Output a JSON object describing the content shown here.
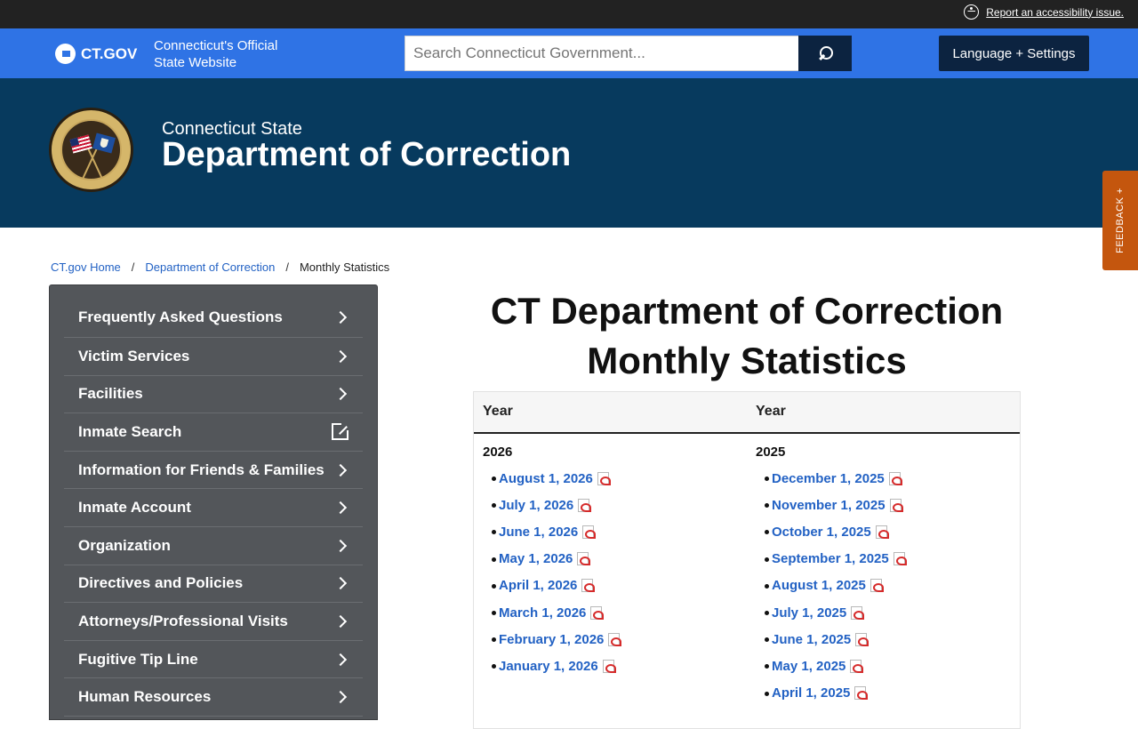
{
  "utility": {
    "accessibility_link": "Report an accessibility issue."
  },
  "header": {
    "logo_text": "CT.GOV",
    "tagline": "Connecticut's Official State Website",
    "search_placeholder": "Search Connecticut Government...",
    "language_button": "Language + Settings"
  },
  "agency": {
    "subtitle": "Connecticut State",
    "title": "Department of Correction"
  },
  "feedback": {
    "label": "FEEDBACK +"
  },
  "breadcrumb": {
    "home": "CT.gov Home",
    "separator": "/",
    "agency": "Department of Correction",
    "current": "Monthly Statistics"
  },
  "sidebar": {
    "items": [
      {
        "label": "Frequently Asked Questions",
        "icon": "chevron-right-icon"
      },
      {
        "label": "Victim Services",
        "icon": "chevron-right-icon"
      },
      {
        "label": "Facilities",
        "icon": "chevron-right-icon"
      },
      {
        "label": "Inmate Search",
        "icon": "external-link-icon"
      },
      {
        "label": "Information for Friends & Families",
        "icon": "chevron-right-icon"
      },
      {
        "label": "Inmate Account",
        "icon": "chevron-right-icon"
      },
      {
        "label": "Organization",
        "icon": "chevron-right-icon"
      },
      {
        "label": "Directives and Policies",
        "icon": "chevron-right-icon"
      },
      {
        "label": "Attorneys/Professional Visits",
        "icon": "chevron-right-icon"
      },
      {
        "label": "Fugitive Tip Line",
        "icon": "chevron-right-icon"
      },
      {
        "label": "Human Resources",
        "icon": "chevron-right-icon"
      }
    ]
  },
  "main": {
    "title": "CT Department of Correction Monthly Statistics",
    "table": {
      "headers": [
        "Year",
        "Year"
      ],
      "columns": [
        {
          "year": "2026",
          "links": [
            "August 1, 2026",
            "July 1, 2026",
            "June 1, 2026",
            "May 1, 2026",
            "April 1, 2026",
            "March 1, 2026",
            "February 1, 2026",
            "January 1, 2026"
          ]
        },
        {
          "year": "2025",
          "links": [
            "December 1, 2025",
            "November 1, 2025",
            "October 1, 2025",
            "September 1, 2025",
            "August 1, 2025",
            "July 1, 2025",
            "June 1, 2025",
            "May 1, 2025",
            "April 1, 2025"
          ]
        }
      ]
    }
  },
  "colors": {
    "utility_bar": "#222222",
    "header_blue": "#2f73e5",
    "navy": "#0c2340",
    "banner": "#073a5e",
    "sidebar": "#53565a",
    "feedback": "#c4560e",
    "link": "#2362c4"
  }
}
